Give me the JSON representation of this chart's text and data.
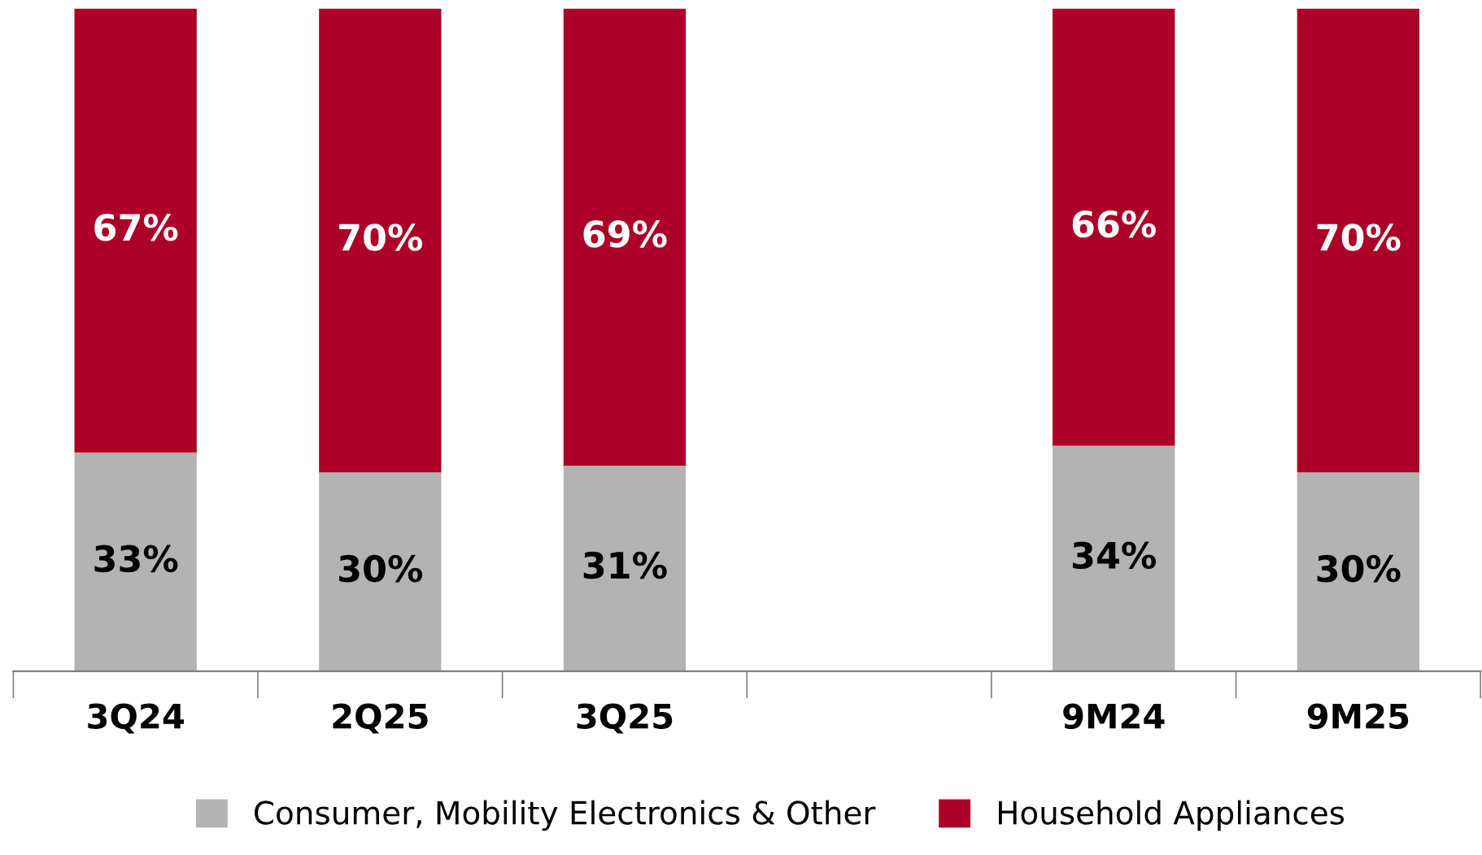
{
  "chart_data": {
    "type": "bar",
    "stacked": true,
    "categories": [
      "3Q24",
      "2Q25",
      "3Q25",
      null,
      "9M24",
      "9M25"
    ],
    "series": [
      {
        "name": "Consumer, Mobility Electronics & Other",
        "color": "#b3b3b3",
        "values": [
          33,
          30,
          31,
          null,
          34,
          30
        ],
        "value_labels": [
          "33%",
          "30%",
          "31%",
          null,
          "34%",
          "30%"
        ]
      },
      {
        "name": "Household Appliances",
        "color": "#ac0026",
        "values": [
          67,
          70,
          69,
          null,
          66,
          70
        ],
        "value_labels": [
          "67%",
          "70%",
          "69%",
          null,
          "66%",
          "70%"
        ]
      }
    ],
    "tick_labels": "x",
    "legend": "bottom"
  }
}
